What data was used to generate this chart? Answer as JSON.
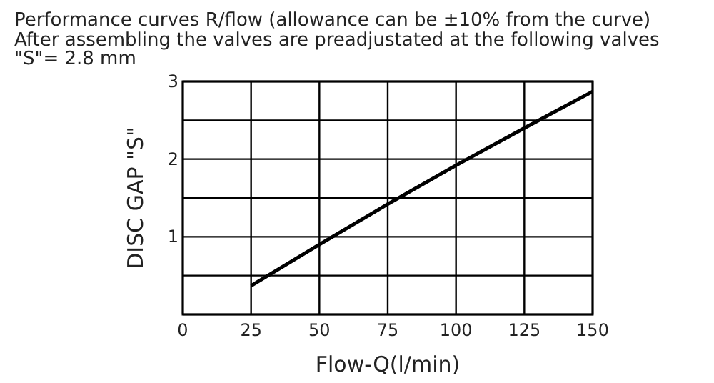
{
  "chart_data": {
    "type": "line",
    "title": "Performance curves R/flow (allowance can be ±10% from the curve)",
    "subtitle": "After assembling the valves are preadjustated at the following valves\n\"S\"= 2.8 mm",
    "xlabel": "Flow-Q(l/min)",
    "ylabel": "DISC GAP \"S\"",
    "x": [
      25,
      50,
      75,
      100,
      125,
      150
    ],
    "series": [
      {
        "color": "#000000",
        "values": [
          0.37,
          0.9,
          1.42,
          1.92,
          2.4,
          2.87
        ]
      }
    ],
    "xlim": [
      0,
      150
    ],
    "xticks": [
      0,
      25,
      50,
      75,
      100,
      125,
      150
    ],
    "ylim": [
      0,
      3
    ],
    "yticks": [
      {
        "value": 0,
        "label": null
      },
      {
        "value": 0.5,
        "label": null
      },
      1,
      {
        "value": 1.5,
        "label": null
      },
      2,
      {
        "value": 2.5,
        "label": null
      },
      3
    ],
    "grid": true,
    "marker": "none",
    "line_style": "solid"
  }
}
